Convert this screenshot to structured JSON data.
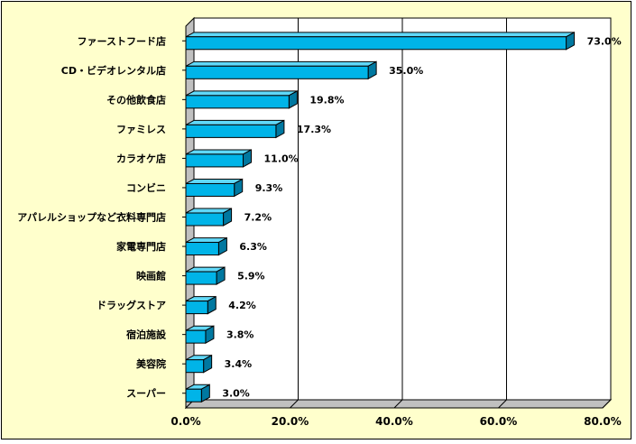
{
  "chart_data": {
    "type": "bar",
    "orientation": "horizontal",
    "categories": [
      "ファーストフード店",
      "CD・ビデオレンタル店",
      "その他飲食店",
      "ファミレス",
      "カラオケ店",
      "コンビニ",
      "アパレルショップなど衣料専門店",
      "家電専門店",
      "映画館",
      "ドラッグストア",
      "宿泊施設",
      "美容院",
      "スーパー"
    ],
    "values": [
      73.0,
      35.0,
      19.8,
      17.3,
      11.0,
      9.3,
      7.2,
      6.3,
      5.9,
      4.2,
      3.8,
      3.4,
      3.0
    ],
    "value_labels": [
      "73.0%",
      "35.0%",
      "19.8%",
      "17.3%",
      "11.0%",
      "9.3%",
      "7.2%",
      "6.3%",
      "5.9%",
      "4.2%",
      "3.8%",
      "3.4%",
      "3.0%"
    ],
    "xlim": [
      0,
      80
    ],
    "x_ticks": [
      0,
      20,
      40,
      60,
      80
    ],
    "x_tick_labels": [
      "0.0%",
      "20.0%",
      "40.0%",
      "60.0%",
      "80.0%"
    ],
    "grid": true,
    "legend": "none",
    "title": "",
    "xlabel": "",
    "ylabel": "",
    "colors": {
      "background": "#ffffcc",
      "plot_back": "#ffffff",
      "plot_floor": "#c0c0c0",
      "bar_front": "#00b4e8",
      "bar_top": "#60d8f8",
      "bar_side": "#0078a0",
      "axis": "#000000"
    }
  }
}
